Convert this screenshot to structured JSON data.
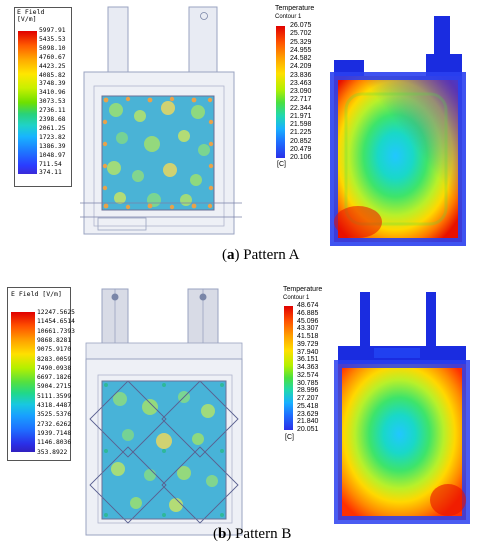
{
  "panel_a": {
    "efield_legend": {
      "title": "E Field\n[V/m]",
      "ticks": [
        "5997.91",
        "5435.53",
        "5098.10",
        "4760.67",
        "4423.25",
        "4085.82",
        "3748.39",
        "3410.96",
        "3073.53",
        "2736.11",
        "2398.68",
        "2061.25",
        "1723.82",
        "1386.39",
        "1048.97",
        "711.54",
        "374.11"
      ]
    },
    "temperature_legend": {
      "title": "Temperature",
      "subtitle": "Contour 1",
      "ticks": [
        "26.075",
        "25.702",
        "25.329",
        "24.955",
        "24.582",
        "24.209",
        "23.836",
        "23.463",
        "23.090",
        "22.717",
        "22.344",
        "21.971",
        "21.598",
        "21.225",
        "20.852",
        "20.479",
        "20.106"
      ],
      "unit": "[C]"
    },
    "caption_label": "a",
    "caption_text": "Pattern A"
  },
  "panel_b": {
    "efield_legend": {
      "title": "E Field [V/m]",
      "ticks": [
        "12247.5625",
        "11454.6514",
        "10661.7393",
        "9868.8281",
        "9075.9170",
        "8283.0059",
        "7490.0938",
        "6697.1826",
        "5904.2715",
        "5111.3599",
        "4318.4487",
        "3525.5376",
        "2732.6262",
        "1939.7148",
        "1146.8036",
        "353.8922"
      ]
    },
    "temperature_legend": {
      "title": "Temperature",
      "subtitle": "Contour 1",
      "ticks": [
        "48.674",
        "46.885",
        "45.096",
        "43.307",
        "41.518",
        "39.729",
        "37.940",
        "36.151",
        "34.363",
        "32.574",
        "30.785",
        "28.996",
        "27.207",
        "25.418",
        "23.629",
        "21.840",
        "20.051"
      ],
      "unit": "[C]"
    },
    "caption_label": "b",
    "caption_text": "Pattern B"
  }
}
